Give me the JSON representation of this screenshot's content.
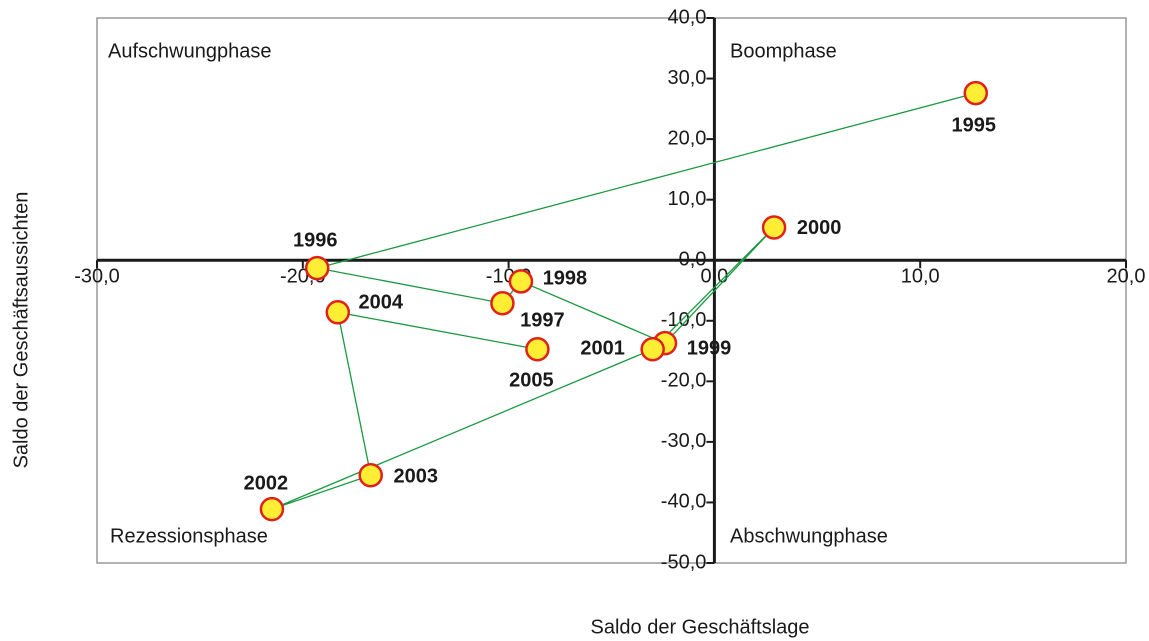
{
  "chart_data": {
    "type": "scatter",
    "x_label": "Saldo der Geschäftslage",
    "y_label": "Saldo der Geschäftsaussichten",
    "annotations": [
      "Aufschwungphase",
      "Boomphase",
      "Rezessionsphase",
      "Abschwungphase"
    ],
    "labels": [
      "1995",
      "1996",
      "1997",
      "1998",
      "1999",
      "2000",
      "2001",
      "2002",
      "2003",
      "2004",
      "2005"
    ],
    "x": [
      12.7,
      -19.3,
      -10.3,
      -9.4,
      -2.4,
      2.9,
      -3.0,
      -21.5,
      -16.7,
      -18.3,
      -8.6
    ],
    "y": [
      27.6,
      -1.3,
      -7.1,
      -3.5,
      -13.7,
      5.4,
      -14.7,
      -41.1,
      -35.5,
      -8.6,
      -14.7
    ],
    "line_color": "#1a9940",
    "marker_fill": "#ffee33",
    "marker_edge": "#e0201b",
    "xlim": [
      -30,
      20
    ],
    "xticks": [
      {
        "value": -30,
        "label": "-30,0"
      },
      {
        "value": -20,
        "label": "-20,0"
      },
      {
        "value": -10,
        "label": "-10,0"
      },
      {
        "value": 0,
        "label": "0,0"
      },
      {
        "value": 10,
        "label": "10,0"
      },
      {
        "value": 20,
        "label": "20,0"
      }
    ],
    "ylim": [
      -50,
      40
    ],
    "yticks": [
      {
        "value": -50,
        "label": "-50,0"
      },
      {
        "value": -40,
        "label": "-40,0"
      },
      {
        "value": -30,
        "label": "-30,0"
      },
      {
        "value": -20,
        "label": "-20,0"
      },
      {
        "value": -10,
        "label": "-10,0"
      },
      {
        "value": 0,
        "label": "0,0"
      },
      {
        "value": 10,
        "label": "10,0"
      },
      {
        "value": 20,
        "label": "20,0"
      },
      {
        "value": 30,
        "label": "30,0"
      },
      {
        "value": 40,
        "label": "40,0"
      }
    ]
  }
}
